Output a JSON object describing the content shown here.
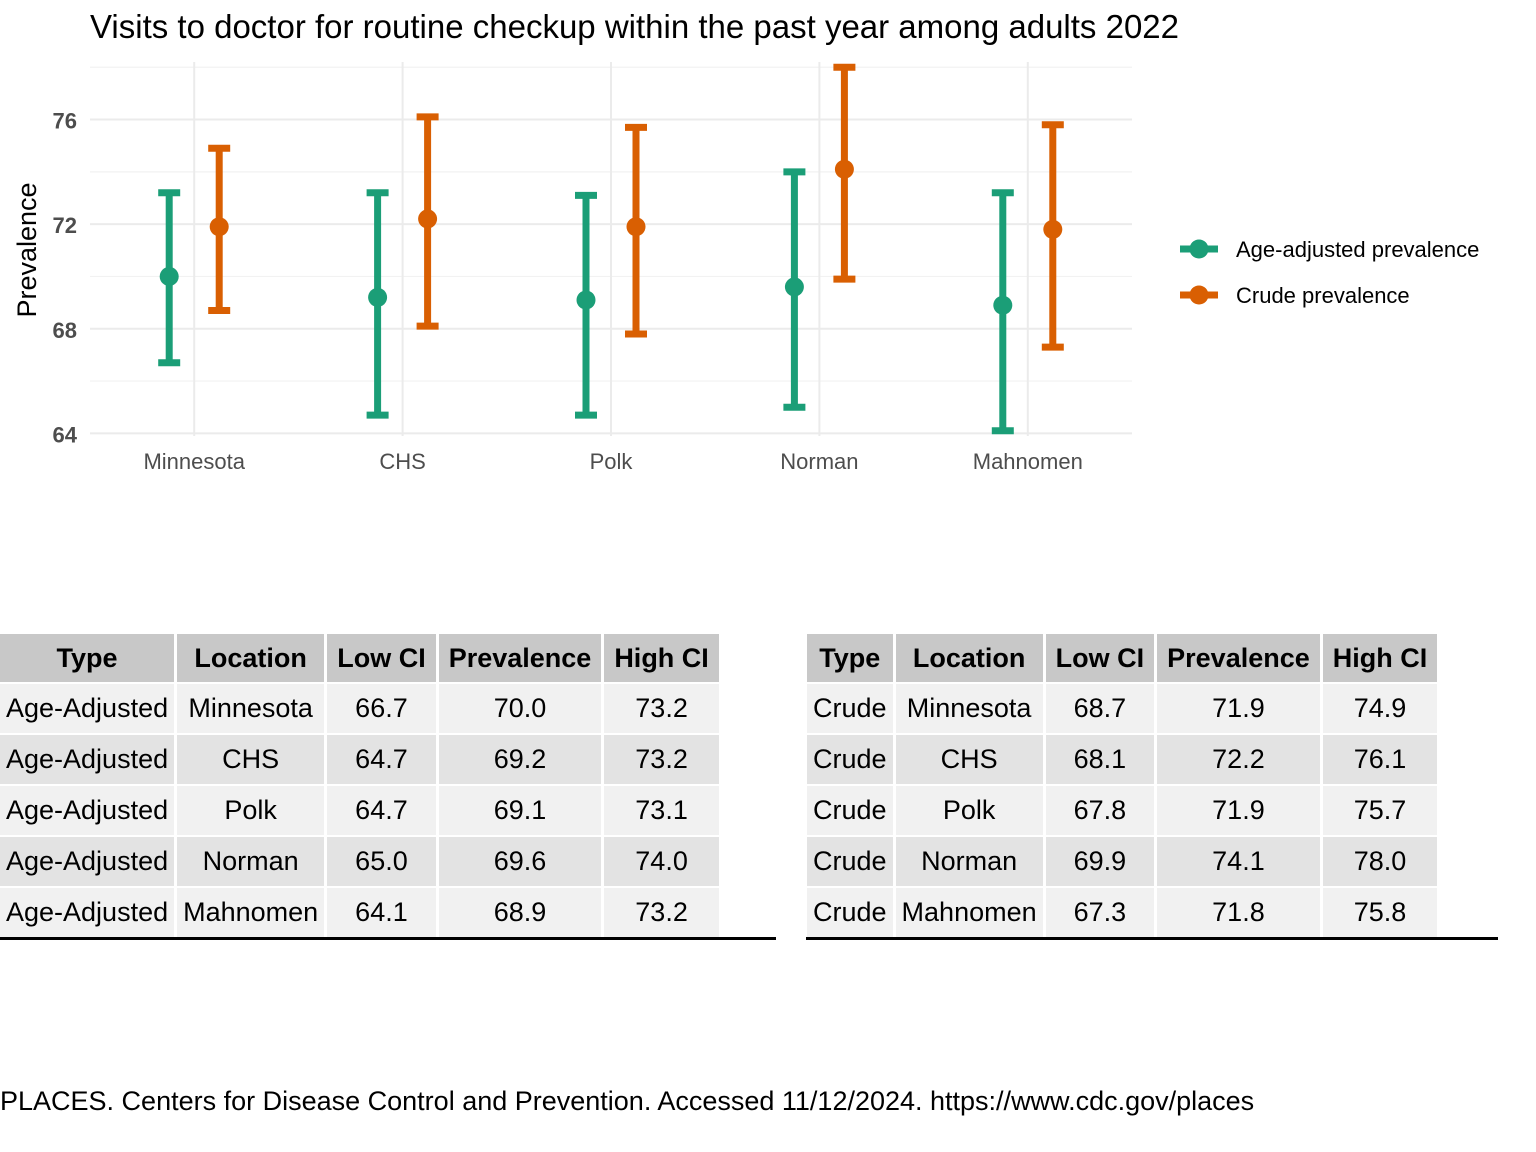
{
  "chart_data": {
    "type": "errorbar",
    "title": "Visits to doctor for routine checkup within the past year among adults 2022",
    "ylabel": "Prevalence",
    "xlabel": "",
    "ylim": [
      63.9,
      78.2
    ],
    "yticks": [
      64,
      68,
      72,
      76
    ],
    "grid": true,
    "legend_position": "right",
    "categories": [
      "Minnesota",
      "CHS",
      "Polk",
      "Norman",
      "Mahnomen"
    ],
    "series": [
      {
        "name": "Age-adjusted prevalence",
        "color": "#1b9e77",
        "values": [
          70.0,
          69.2,
          69.1,
          69.6,
          68.9
        ],
        "low": [
          66.7,
          64.7,
          64.7,
          65.0,
          64.1
        ],
        "high": [
          73.2,
          73.2,
          73.1,
          74.0,
          73.2
        ]
      },
      {
        "name": "Crude prevalence",
        "color": "#d95f02",
        "values": [
          71.9,
          72.2,
          71.9,
          74.1,
          71.8
        ],
        "low": [
          68.7,
          68.1,
          67.8,
          69.9,
          67.3
        ],
        "high": [
          74.9,
          76.1,
          75.7,
          78.0,
          75.8
        ]
      }
    ]
  },
  "tables": {
    "headers": [
      "Type",
      "Location",
      "Low CI",
      "Prevalence",
      "High CI"
    ],
    "age_adjusted": [
      [
        "Age-Adjusted",
        "Minnesota",
        "66.7",
        "70.0",
        "73.2"
      ],
      [
        "Age-Adjusted",
        "CHS",
        "64.7",
        "69.2",
        "73.2"
      ],
      [
        "Age-Adjusted",
        "Polk",
        "64.7",
        "69.1",
        "73.1"
      ],
      [
        "Age-Adjusted",
        "Norman",
        "65.0",
        "69.6",
        "74.0"
      ],
      [
        "Age-Adjusted",
        "Mahnomen",
        "64.1",
        "68.9",
        "73.2"
      ]
    ],
    "crude": [
      [
        "Crude",
        "Minnesota",
        "68.7",
        "71.9",
        "74.9"
      ],
      [
        "Crude",
        "CHS",
        "68.1",
        "72.2",
        "76.1"
      ],
      [
        "Crude",
        "Polk",
        "67.8",
        "71.9",
        "75.7"
      ],
      [
        "Crude",
        "Norman",
        "69.9",
        "74.1",
        "78.0"
      ],
      [
        "Crude",
        "Mahnomen",
        "67.3",
        "71.8",
        "75.8"
      ]
    ]
  },
  "source": "PLACES. Centers for Disease Control and Prevention. Accessed 11/12/2024. https://www.cdc.gov/places"
}
